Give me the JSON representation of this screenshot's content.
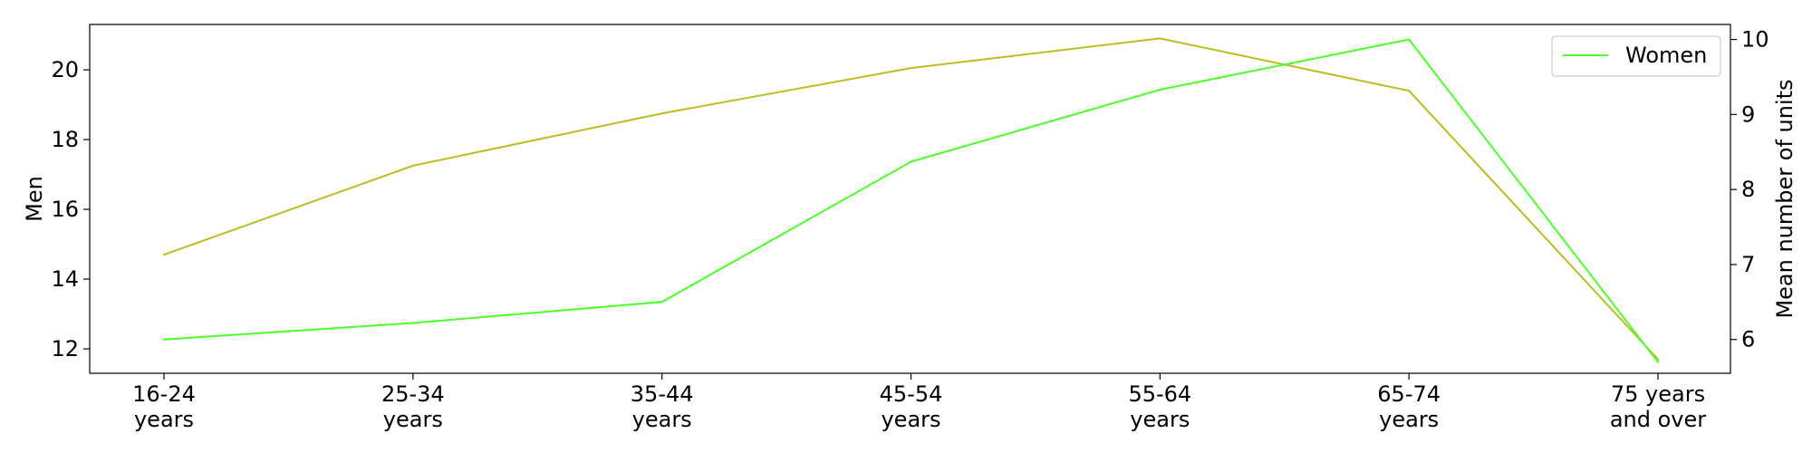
{
  "chart_data": {
    "type": "line",
    "categories": [
      [
        "16-24",
        "years"
      ],
      [
        "25-34",
        "years"
      ],
      [
        "35-44",
        "years"
      ],
      [
        "45-54",
        "years"
      ],
      [
        "55-64",
        "years"
      ],
      [
        "65-74",
        "years"
      ],
      [
        "75 years",
        "and over"
      ]
    ],
    "series": [
      {
        "name": "Men",
        "axis": "left",
        "color": "#bcbd22",
        "values": [
          14.7,
          17.25,
          18.75,
          20.05,
          20.9,
          19.4,
          11.7
        ]
      },
      {
        "name": "Women",
        "axis": "right",
        "color": "#4dff2a",
        "values": [
          6.0,
          6.22,
          6.5,
          8.37,
          9.33,
          10.0,
          5.7
        ]
      }
    ],
    "left_axis": {
      "label": "Men",
      "ticks": [
        12,
        14,
        16,
        18,
        20
      ],
      "ylim": [
        11.3,
        21.3
      ]
    },
    "right_axis": {
      "label": "Mean number of units",
      "ticks": [
        6,
        7,
        8,
        9,
        10
      ],
      "ylim": [
        5.55,
        10.2
      ]
    },
    "legend": {
      "entries": [
        "Women"
      ],
      "position": "upper right"
    },
    "grid": false
  }
}
